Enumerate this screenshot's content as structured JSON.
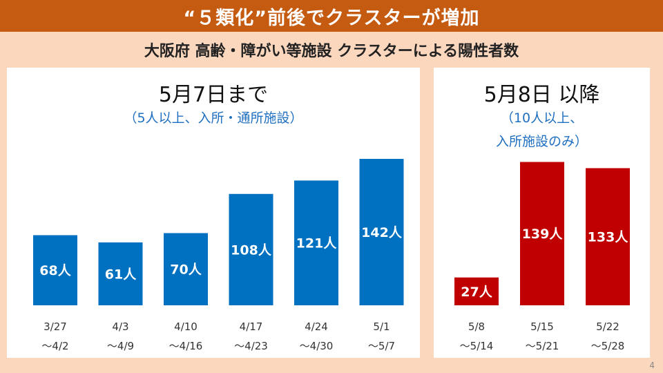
{
  "header": {
    "title": "“５類化”前後でクラスターが増加",
    "subtitle": "大阪府 高齢・障がい等施設 クラスターによる陽性者数"
  },
  "page_number": "4",
  "chart_data": [
    {
      "type": "bar",
      "title": "5月7日まで",
      "note": "（5人以上、入所・通所施設）",
      "bar_color": "#0070C0",
      "categories": [
        [
          "3/27",
          "～4/2"
        ],
        [
          "4/3",
          "～4/9"
        ],
        [
          "4/10",
          "～4/16"
        ],
        [
          "4/17",
          "～4/23"
        ],
        [
          "4/24",
          "～4/30"
        ],
        [
          "5/1",
          "～5/7"
        ]
      ],
      "values": [
        68,
        61,
        70,
        108,
        121,
        142
      ],
      "unit": "人"
    },
    {
      "type": "bar",
      "title": "5月8日 以降",
      "note": [
        "（10人以上、",
        "入所施設のみ）"
      ],
      "bar_color": "#C00000",
      "categories": [
        [
          "5/8",
          "～5/14"
        ],
        [
          "5/15",
          "～5/21"
        ],
        [
          "5/22",
          "～5/28"
        ]
      ],
      "values": [
        27,
        139,
        133
      ],
      "unit": "人"
    }
  ]
}
